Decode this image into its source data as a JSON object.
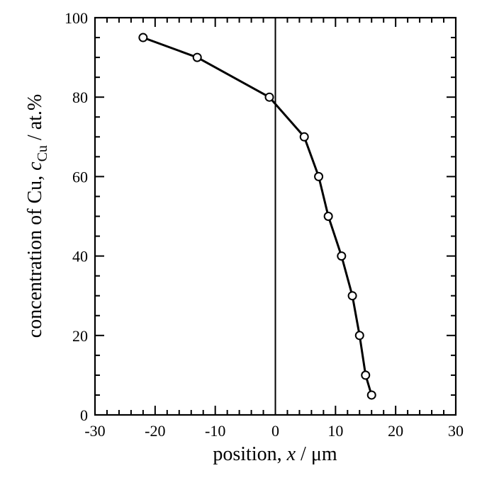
{
  "chart_data": {
    "type": "line",
    "xlabel": {
      "prefix": "position, ",
      "var": "x",
      "suffix": " / μm"
    },
    "ylabel": {
      "prefix": "concentration of Cu, ",
      "var": "c",
      "sub": "Cu",
      "suffix": " / at.%"
    },
    "xlim": [
      -30,
      30
    ],
    "ylim": [
      0,
      100
    ],
    "x_ticks": [
      -30,
      -20,
      -10,
      0,
      10,
      20,
      30
    ],
    "x_tick_labels": [
      "-30",
      "-20",
      "-10",
      "0",
      "10",
      "20",
      "30"
    ],
    "y_ticks": [
      0,
      20,
      40,
      60,
      80,
      100
    ],
    "y_tick_labels": [
      "0",
      "20",
      "40",
      "60",
      "80",
      "100"
    ],
    "x_minor_step": 2,
    "y_minor_step": 5,
    "vertical_reference_x": 0,
    "grid": false,
    "series": [
      {
        "marker": "open-circle",
        "x": [
          -22,
          -13,
          -1,
          4.8,
          7.2,
          8.8,
          11,
          12.8,
          14,
          15,
          16
        ],
        "y": [
          95,
          90,
          80,
          70,
          60,
          50,
          40,
          30,
          20,
          10,
          5
        ]
      }
    ]
  }
}
